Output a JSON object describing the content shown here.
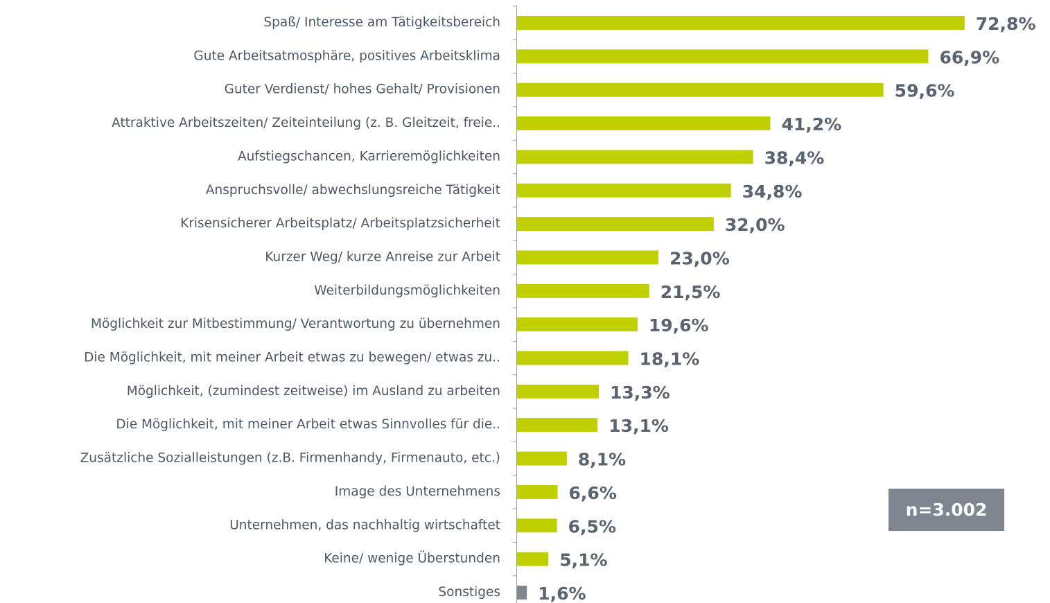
{
  "chart_data": {
    "type": "barh",
    "categories": [
      "Spaß/ Interesse am Tätigkeitsbereich",
      "Gute Arbeitsatmosphäre, positives Arbeitsklima",
      "Guter Verdienst/ hohes Gehalt/ Provisionen",
      "Attraktive Arbeitszeiten/ Zeiteinteilung (z. B. Gleitzeit, freie..",
      "Aufstiegschancen, Karrieremöglichkeiten",
      "Anspruchsvolle/ abwechslungsreiche Tätigkeit",
      "Krisensicherer Arbeitsplatz/ Arbeitsplatzsicherheit",
      "Kurzer Weg/ kurze Anreise zur Arbeit",
      "Weiterbildungsmöglichkeiten",
      "Möglichkeit zur Mitbestimmung/ Verantwortung zu übernehmen",
      "Die Möglichkeit, mit meiner Arbeit etwas zu bewegen/ etwas zu..",
      "Möglichkeit, (zumindest zeitweise) im Ausland zu arbeiten",
      "Die Möglichkeit, mit meiner Arbeit etwas Sinnvolles für die..",
      "Zusätzliche Sozialleistungen (z.B. Firmenhandy, Firmenauto, etc.)",
      "Image des Unternehmens",
      "Unternehmen, das nachhaltig wirtschaftet",
      "Keine/ wenige Überstunden",
      "Sonstiges"
    ],
    "values": [
      72.8,
      66.9,
      59.6,
      41.2,
      38.4,
      34.8,
      32.0,
      23.0,
      21.5,
      19.6,
      18.1,
      13.3,
      13.1,
      8.1,
      6.6,
      6.5,
      5.1,
      1.6
    ],
    "value_labels": [
      "72,8%",
      "66,9%",
      "59,6%",
      "41,2%",
      "38,4%",
      "34,8%",
      "32,0%",
      "23,0%",
      "21,5%",
      "19,6%",
      "18,1%",
      "13,3%",
      "13,1%",
      "8,1%",
      "6,6%",
      "6,5%",
      "5,1%",
      "1,6%"
    ],
    "colors": [
      "#c0cf00",
      "#c0cf00",
      "#c0cf00",
      "#c0cf00",
      "#c0cf00",
      "#c0cf00",
      "#c0cf00",
      "#c0cf00",
      "#c0cf00",
      "#c0cf00",
      "#c0cf00",
      "#c0cf00",
      "#c0cf00",
      "#c0cf00",
      "#c0cf00",
      "#c0cf00",
      "#c0cf00",
      "#7f8690"
    ],
    "xlim": [
      0,
      85
    ],
    "annotation": "n=3.002"
  }
}
